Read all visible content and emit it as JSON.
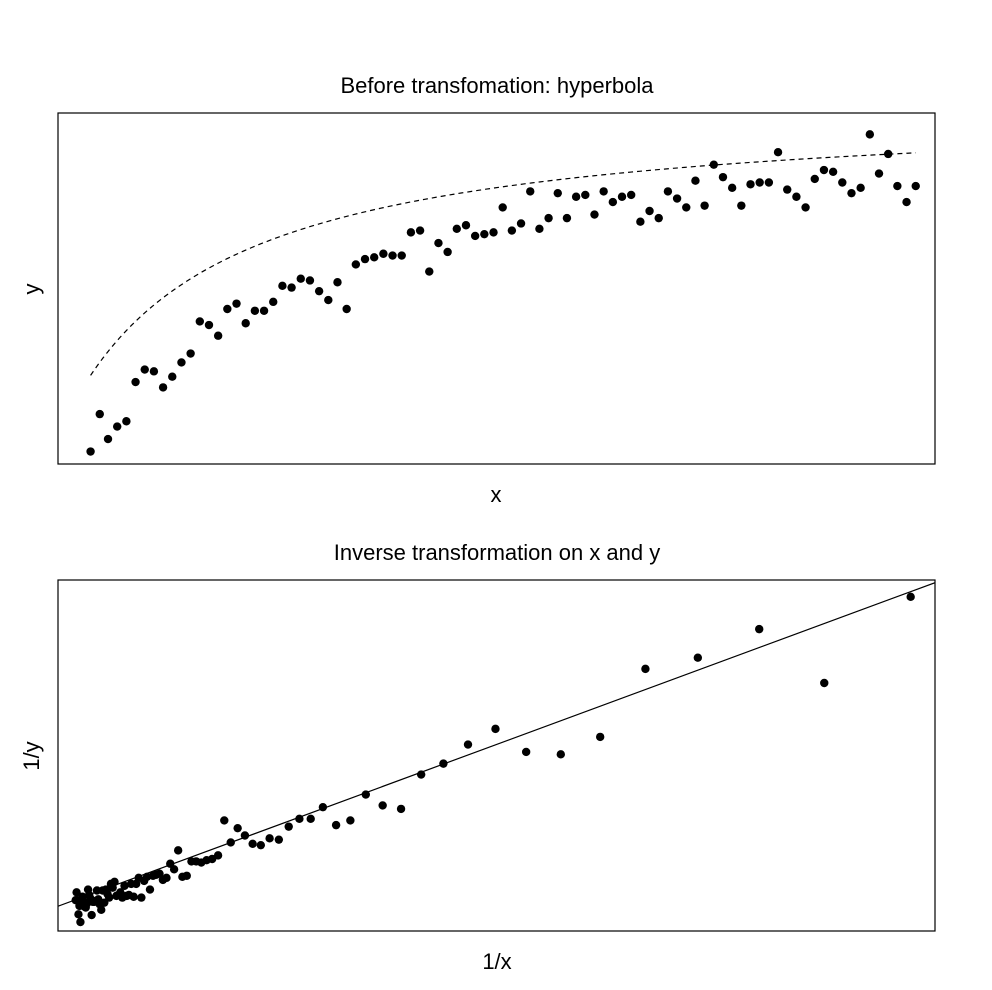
{
  "chart_data": [
    {
      "type": "scatter",
      "title": "Before transfomation: hyperbola",
      "xlabel": "x",
      "ylabel": "y",
      "axis_ticks": false,
      "grid": false,
      "legend": false,
      "xlim": [
        0.615,
        10.17
      ],
      "ylim": [
        0.98,
        2.95
      ],
      "fit": {
        "kind": "hyperbola",
        "style": "dashed",
        "a": 0.3333,
        "b": 0.3333
      },
      "series": [
        {
          "x": [
            0.97,
            1.07,
            1.16,
            1.26,
            1.36,
            1.46,
            1.56,
            1.66,
            1.76,
            1.86,
            1.96,
            2.06,
            2.16,
            2.26,
            2.36,
            2.46,
            2.56,
            2.66,
            2.76,
            2.86,
            2.96,
            3.06,
            3.16,
            3.26,
            3.36,
            3.46,
            3.56,
            3.66,
            3.76,
            3.86,
            3.96,
            4.06,
            4.16,
            4.26,
            4.36,
            4.46,
            4.56,
            4.66,
            4.76,
            4.86,
            4.96,
            5.06,
            5.16,
            5.26,
            5.36,
            5.46,
            5.56,
            5.66,
            5.76,
            5.86,
            5.96,
            6.06,
            6.16,
            6.26,
            6.36,
            6.46,
            6.56,
            6.66,
            6.76,
            6.86,
            6.96,
            7.06,
            7.16,
            7.26,
            7.36,
            7.46,
            7.56,
            7.66,
            7.76,
            7.86,
            7.96,
            8.06,
            8.16,
            8.26,
            8.36,
            8.46,
            8.56,
            8.66,
            8.76,
            8.86,
            8.96,
            9.06,
            9.16,
            9.26,
            9.36,
            9.46,
            9.56,
            9.66,
            9.76,
            9.86,
            9.96
          ],
          "y": [
            1.05,
            1.26,
            1.12,
            1.19,
            1.22,
            1.44,
            1.51,
            1.5,
            1.41,
            1.47,
            1.55,
            1.6,
            1.78,
            1.76,
            1.7,
            1.85,
            1.88,
            1.77,
            1.84,
            1.84,
            1.89,
            1.98,
            1.97,
            2.02,
            2.01,
            1.95,
            1.9,
            2.0,
            1.85,
            2.1,
            2.13,
            2.14,
            2.16,
            2.15,
            2.15,
            2.28,
            2.29,
            2.06,
            2.22,
            2.17,
            2.3,
            2.32,
            2.26,
            2.27,
            2.28,
            2.42,
            2.29,
            2.33,
            2.51,
            2.3,
            2.36,
            2.5,
            2.36,
            2.48,
            2.49,
            2.38,
            2.51,
            2.45,
            2.48,
            2.49,
            2.34,
            2.4,
            2.36,
            2.51,
            2.47,
            2.42,
            2.57,
            2.43,
            2.66,
            2.59,
            2.53,
            2.43,
            2.55,
            2.56,
            2.56,
            2.73,
            2.52,
            2.48,
            2.42,
            2.58,
            2.63,
            2.62,
            2.56,
            2.5,
            2.53,
            2.83,
            2.61,
            2.72,
            2.54,
            2.45,
            2.54
          ]
        }
      ]
    },
    {
      "type": "scatter",
      "title": "Inverse transformation on x and y",
      "xlabel": "1/x",
      "ylabel": "1/y",
      "axis_ticks": false,
      "grid": false,
      "legend": false,
      "xlim": [
        0.0807,
        1.058
      ],
      "ylim": [
        0.3369,
        0.9834
      ],
      "fit": {
        "kind": "line",
        "style": "solid",
        "intercept": 0.3333,
        "slope": 0.6098
      },
      "series": [
        {
          "x": [
            1.0309,
            0.9346,
            0.8621,
            0.7937,
            0.7353,
            0.6849,
            0.641,
            0.6024,
            0.5682,
            0.5376,
            0.5102,
            0.4854,
            0.463,
            0.4425,
            0.4237,
            0.4065,
            0.3906,
            0.3759,
            0.3623,
            0.3497,
            0.3378,
            0.3268,
            0.3165,
            0.3067,
            0.2976,
            0.289,
            0.2809,
            0.2732,
            0.266,
            0.2591,
            0.2525,
            0.2463,
            0.2404,
            0.2347,
            0.2294,
            0.2242,
            0.2193,
            0.2146,
            0.2101,
            0.2058,
            0.2016,
            0.1976,
            0.1938,
            0.1901,
            0.1866,
            0.1832,
            0.1799,
            0.1767,
            0.1736,
            0.1706,
            0.1678,
            0.165,
            0.1623,
            0.1597,
            0.1572,
            0.1548,
            0.1524,
            0.1502,
            0.1479,
            0.1458,
            0.1437,
            0.1416,
            0.1397,
            0.1377,
            0.1359,
            0.134,
            0.1323,
            0.1305,
            0.1289,
            0.1272,
            0.1256,
            0.1241,
            0.1225,
            0.1211,
            0.1196,
            0.1182,
            0.1168,
            0.1155,
            0.1142,
            0.1129,
            0.1116,
            0.1104,
            0.1092,
            0.108,
            0.1068,
            0.1057,
            0.1046,
            0.1035,
            0.1025,
            0.1014,
            0.1004
          ],
          "y": [
            0.9524,
            0.7937,
            0.8929,
            0.8403,
            0.8197,
            0.6944,
            0.6623,
            0.6667,
            0.7092,
            0.6803,
            0.6452,
            0.625,
            0.5618,
            0.5682,
            0.5882,
            0.5405,
            0.5319,
            0.565,
            0.5435,
            0.5435,
            0.5291,
            0.5051,
            0.5076,
            0.495,
            0.4975,
            0.5128,
            0.5263,
            0.5,
            0.5405,
            0.4762,
            0.4695,
            0.4673,
            0.463,
            0.4651,
            0.4651,
            0.4386,
            0.4367,
            0.4854,
            0.4505,
            0.4608,
            0.4348,
            0.431,
            0.4425,
            0.4405,
            0.4386,
            0.4132,
            0.4367,
            0.4292,
            0.3984,
            0.4348,
            0.4237,
            0.4,
            0.4237,
            0.4032,
            0.4016,
            0.4202,
            0.3984,
            0.4082,
            0.4032,
            0.4016,
            0.4274,
            0.4167,
            0.4237,
            0.3984,
            0.4049,
            0.4132,
            0.3891,
            0.4115,
            0.3759,
            0.3861,
            0.3953,
            0.4115,
            0.3922,
            0.3906,
            0.3906,
            0.3663,
            0.3968,
            0.4032,
            0.4132,
            0.3876,
            0.3802,
            0.3817,
            0.3906,
            0.4,
            0.3953,
            0.3534,
            0.3831,
            0.3676,
            0.3937,
            0.4082,
            0.3937
          ]
        }
      ]
    }
  ]
}
